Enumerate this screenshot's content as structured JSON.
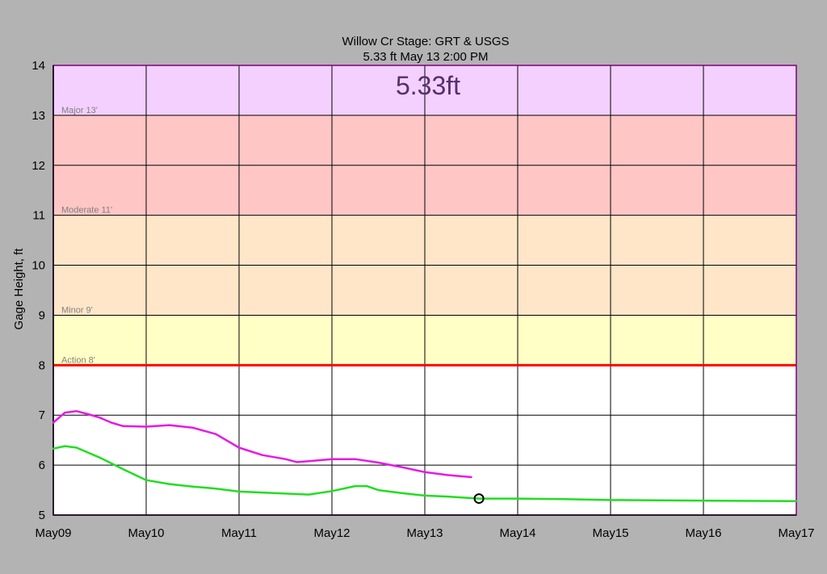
{
  "chart_data": {
    "type": "line",
    "title": "Willow Cr Stage:  GRT & USGS",
    "subtitle": "5.33 ft May 13 2:00 PM",
    "current_value_label": "5.33ft",
    "ylabel": "Gage Height, ft",
    "xlabel": "",
    "ylim": [
      5,
      14
    ],
    "yticks": [
      5,
      6,
      7,
      8,
      9,
      10,
      11,
      12,
      13,
      14
    ],
    "xlim": [
      "2024-05-09 00:00",
      "2024-05-17 00:00"
    ],
    "xticks": [
      "May09",
      "May10",
      "May11",
      "May12",
      "May13",
      "May14",
      "May15",
      "May16",
      "May17"
    ],
    "grid": true,
    "legend": "none",
    "flood_bands": [
      {
        "label": "Action 8'",
        "from": 8,
        "to": 9,
        "color": "#ffffc6"
      },
      {
        "label": "Minor 9'",
        "from": 9,
        "to": 11,
        "color": "#ffe6c9"
      },
      {
        "label": "Moderate 11'",
        "from": 11,
        "to": 13,
        "color": "#ffc6c6"
      },
      {
        "label": "Major 13'",
        "from": 13,
        "to": 14,
        "color": "#f3d0ff"
      }
    ],
    "action_line": {
      "value": 8,
      "color": "#ff0000"
    },
    "series": [
      {
        "color": "#e619e6",
        "points": [
          [
            "2024-05-09 00:00",
            6.85
          ],
          [
            "2024-05-09 03:00",
            7.05
          ],
          [
            "2024-05-09 06:00",
            7.08
          ],
          [
            "2024-05-09 09:00",
            7.02
          ],
          [
            "2024-05-09 12:00",
            6.95
          ],
          [
            "2024-05-09 15:00",
            6.85
          ],
          [
            "2024-05-09 18:00",
            6.78
          ],
          [
            "2024-05-10 00:00",
            6.77
          ],
          [
            "2024-05-10 06:00",
            6.8
          ],
          [
            "2024-05-10 12:00",
            6.75
          ],
          [
            "2024-05-10 18:00",
            6.62
          ],
          [
            "2024-05-11 00:00",
            6.35
          ],
          [
            "2024-05-11 06:00",
            6.2
          ],
          [
            "2024-05-11 12:00",
            6.12
          ],
          [
            "2024-05-11 15:00",
            6.06
          ],
          [
            "2024-05-11 18:00",
            6.08
          ],
          [
            "2024-05-12 00:00",
            6.12
          ],
          [
            "2024-05-12 06:00",
            6.12
          ],
          [
            "2024-05-12 12:00",
            6.05
          ],
          [
            "2024-05-12 18:00",
            5.96
          ],
          [
            "2024-05-13 00:00",
            5.86
          ],
          [
            "2024-05-13 06:00",
            5.8
          ],
          [
            "2024-05-13 12:00",
            5.76
          ]
        ]
      },
      {
        "color": "#22dd22",
        "points": [
          [
            "2024-05-09 00:00",
            6.33
          ],
          [
            "2024-05-09 03:00",
            6.38
          ],
          [
            "2024-05-09 06:00",
            6.35
          ],
          [
            "2024-05-09 12:00",
            6.15
          ],
          [
            "2024-05-09 18:00",
            5.92
          ],
          [
            "2024-05-10 00:00",
            5.7
          ],
          [
            "2024-05-10 06:00",
            5.62
          ],
          [
            "2024-05-10 12:00",
            5.57
          ],
          [
            "2024-05-10 18:00",
            5.53
          ],
          [
            "2024-05-11 00:00",
            5.47
          ],
          [
            "2024-05-11 12:00",
            5.43
          ],
          [
            "2024-05-11 18:00",
            5.41
          ],
          [
            "2024-05-12 00:00",
            5.48
          ],
          [
            "2024-05-12 06:00",
            5.58
          ],
          [
            "2024-05-12 09:00",
            5.58
          ],
          [
            "2024-05-12 12:00",
            5.5
          ],
          [
            "2024-05-12 18:00",
            5.44
          ],
          [
            "2024-05-13 00:00",
            5.39
          ],
          [
            "2024-05-13 06:00",
            5.37
          ],
          [
            "2024-05-13 14:00",
            5.33
          ],
          [
            "2024-05-14 00:00",
            5.33
          ],
          [
            "2024-05-14 12:00",
            5.32
          ],
          [
            "2024-05-15 00:00",
            5.3
          ],
          [
            "2024-05-16 00:00",
            5.29
          ],
          [
            "2024-05-17 00:00",
            5.28
          ]
        ]
      }
    ],
    "current_marker": {
      "x": "2024-05-13 14:00",
      "y": 5.33
    }
  }
}
